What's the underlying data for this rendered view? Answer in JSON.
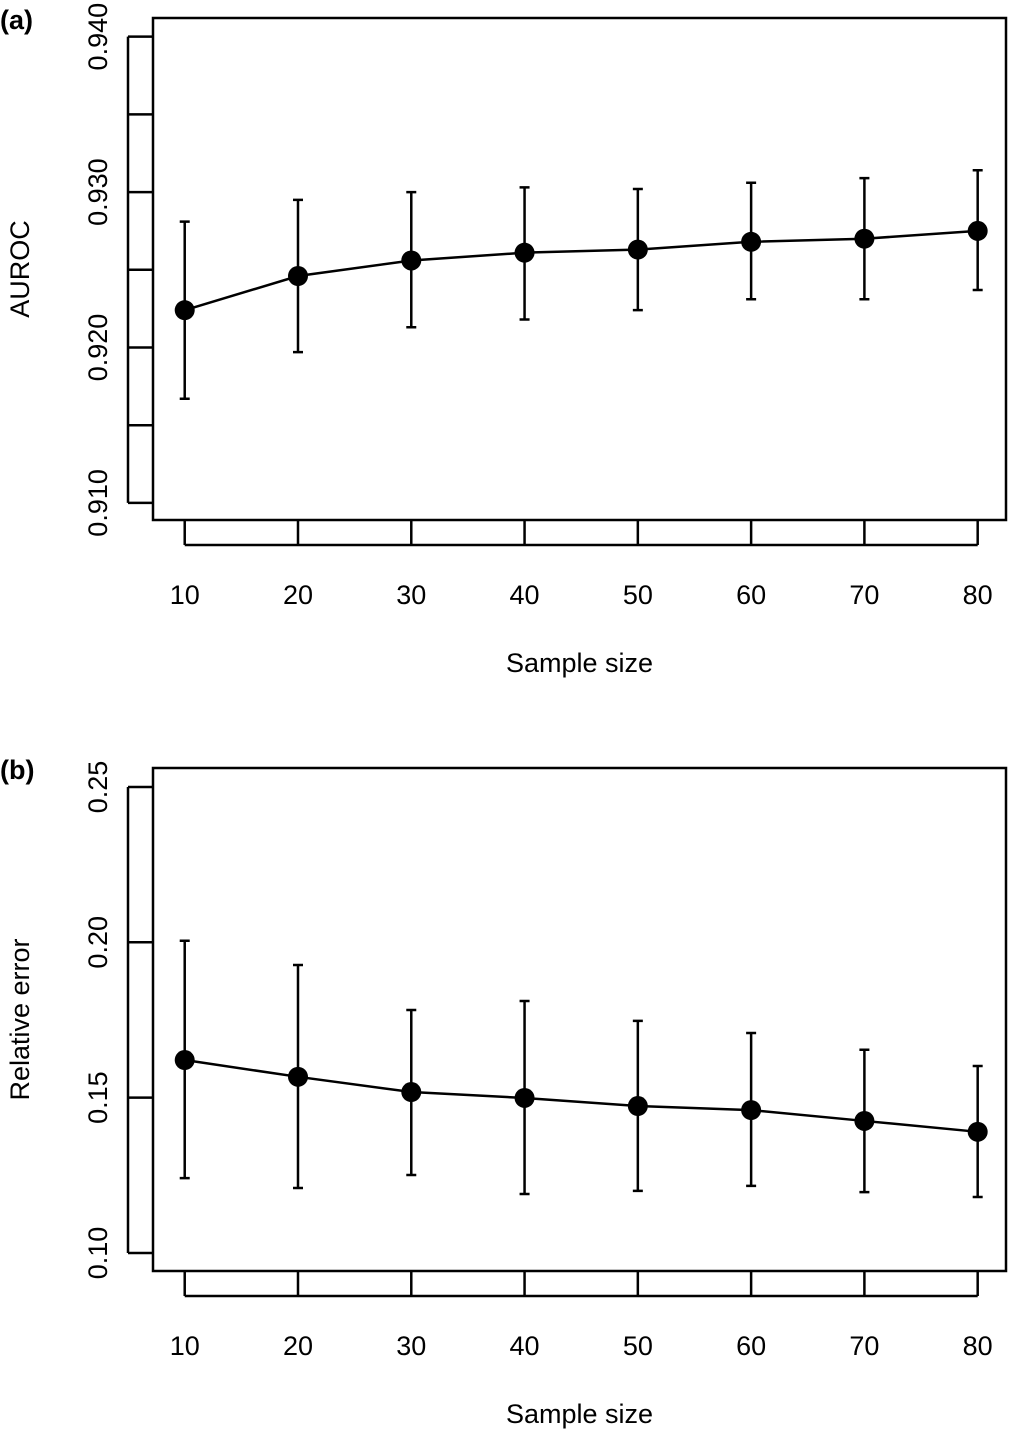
{
  "chart_data": [
    {
      "type": "line",
      "panel_label": "(a)",
      "x_label": "Sample size",
      "y_label": "AUROC",
      "x": [
        10,
        20,
        30,
        40,
        50,
        60,
        70,
        80
      ],
      "series": [
        {
          "color": "#000000",
          "values": [
            0.9224,
            0.9246,
            0.9256,
            0.9261,
            0.9263,
            0.9268,
            0.927,
            0.9275
          ],
          "lower": [
            0.9167,
            0.9197,
            0.9213,
            0.9218,
            0.9224,
            0.9231,
            0.9231,
            0.9237
          ],
          "upper": [
            0.9281,
            0.9295,
            0.93,
            0.9303,
            0.9302,
            0.9306,
            0.9309,
            0.9314
          ]
        }
      ],
      "xlim": [
        7.2,
        82.5
      ],
      "xticks": [
        10,
        20,
        30,
        40,
        50,
        60,
        70,
        80
      ],
      "ylim": [
        0.9089,
        0.9412
      ],
      "yticks": [
        {
          "value": 0.91,
          "label": "0.910"
        },
        {
          "value": 0.92,
          "label": "0.920"
        },
        {
          "value": 0.93,
          "label": "0.930"
        },
        {
          "value": 0.94,
          "label": "0.940"
        }
      ],
      "minor_yticks": [
        0.915,
        0.925,
        0.935
      ]
    },
    {
      "type": "line",
      "panel_label": "(b)",
      "x_label": "Sample size",
      "y_label": "Relative error",
      "x": [
        10,
        20,
        30,
        40,
        50,
        60,
        70,
        80
      ],
      "series": [
        {
          "color": "#000000",
          "values": [
            0.1621,
            0.1567,
            0.1518,
            0.1499,
            0.1473,
            0.146,
            0.1425,
            0.139
          ],
          "lower": [
            0.1241,
            0.1209,
            0.1251,
            0.119,
            0.12,
            0.1216,
            0.1196,
            0.118
          ],
          "upper": [
            0.2005,
            0.1927,
            0.1782,
            0.1811,
            0.1747,
            0.1708,
            0.1654,
            0.1602
          ]
        }
      ],
      "xlim": [
        7.2,
        82.5
      ],
      "xticks": [
        10,
        20,
        30,
        40,
        50,
        60,
        70,
        80
      ],
      "ylim": [
        0.0942,
        0.2561
      ],
      "yticks": [
        {
          "value": 0.1,
          "label": "0.10"
        },
        0.15,
        {
          "value": 0.2,
          "label": "0.20"
        },
        0.25
      ]
    }
  ]
}
